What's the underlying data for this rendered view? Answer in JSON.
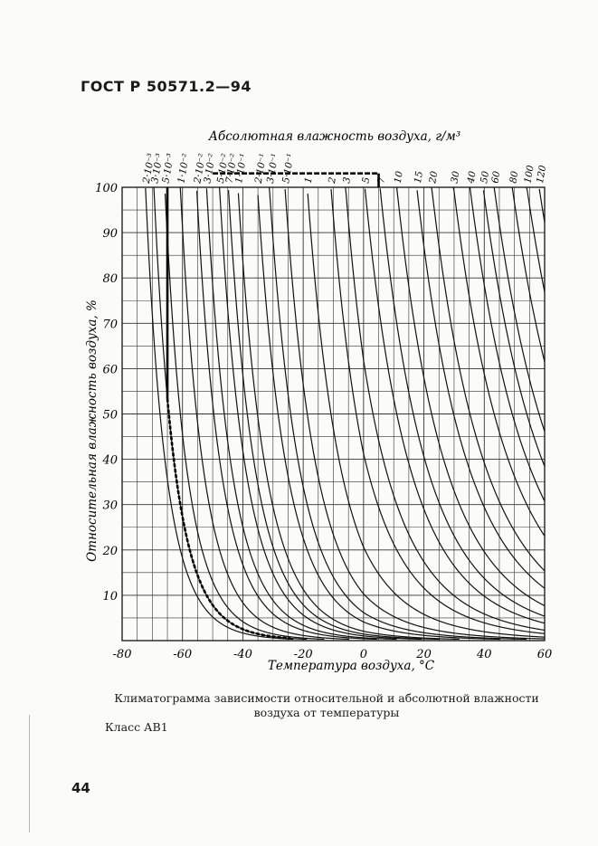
{
  "header": {
    "doc_code": "ГОСТ Р 50571.2—94"
  },
  "page_number": "44",
  "caption": {
    "line1": "Климатограмма зависимости относительной и абсолютной влажности",
    "line2": "воздуха от температуры"
  },
  "class_label": "Класс АВ1",
  "chart_data": {
    "type": "line",
    "title": "",
    "top_axis_label": "Абсолютная влажность воздуха, г/м³",
    "xlabel": "Температура воздуха, °С",
    "ylabel": "Относительная влажность воздуха, %",
    "xlim": [
      -80,
      60
    ],
    "ylim": [
      0,
      100
    ],
    "x_ticks": [
      "-80",
      "-60",
      "-40",
      "-20",
      "0",
      "20",
      "40",
      "60"
    ],
    "x_tick_values": [
      -80,
      -60,
      -40,
      -20,
      0,
      20,
      40,
      60
    ],
    "y_ticks": [
      "100",
      "90",
      "80",
      "70",
      "60",
      "50",
      "40",
      "30",
      "20",
      "10"
    ],
    "y_tick_values": [
      100,
      90,
      80,
      70,
      60,
      50,
      40,
      30,
      20,
      10
    ],
    "grid": true,
    "grid_x_step": 5,
    "grid_y_step": 5,
    "curve_family": "absolute humidity isolines, g/m3",
    "curve_labels": [
      "2·10⁻³",
      "3·10⁻³",
      "5·10⁻³",
      "1·10⁻²",
      "2·10⁻²",
      "3·10⁻²",
      "5·10⁻²",
      "7·10⁻²",
      "1·10⁻¹",
      "2·10⁻¹",
      "3·10⁻¹",
      "5·10⁻¹",
      "1",
      "2",
      "3",
      "5",
      "7",
      "10",
      "15",
      "20",
      "30",
      "40",
      "50",
      "60",
      "80",
      "100",
      "120"
    ],
    "curve_values": [
      0.002,
      0.003,
      0.005,
      0.01,
      0.02,
      0.03,
      0.05,
      0.07,
      0.1,
      0.2,
      0.3,
      0.5,
      1,
      2,
      3,
      5,
      7,
      10,
      15,
      20,
      30,
      40,
      50,
      60,
      80,
      100,
      120
    ],
    "class_boundary": {
      "name": "Класс АВ1",
      "t_min": -65,
      "t_max": 5,
      "rh_max": 100,
      "ah_min": 0.003,
      "ah_max": 7
    }
  }
}
